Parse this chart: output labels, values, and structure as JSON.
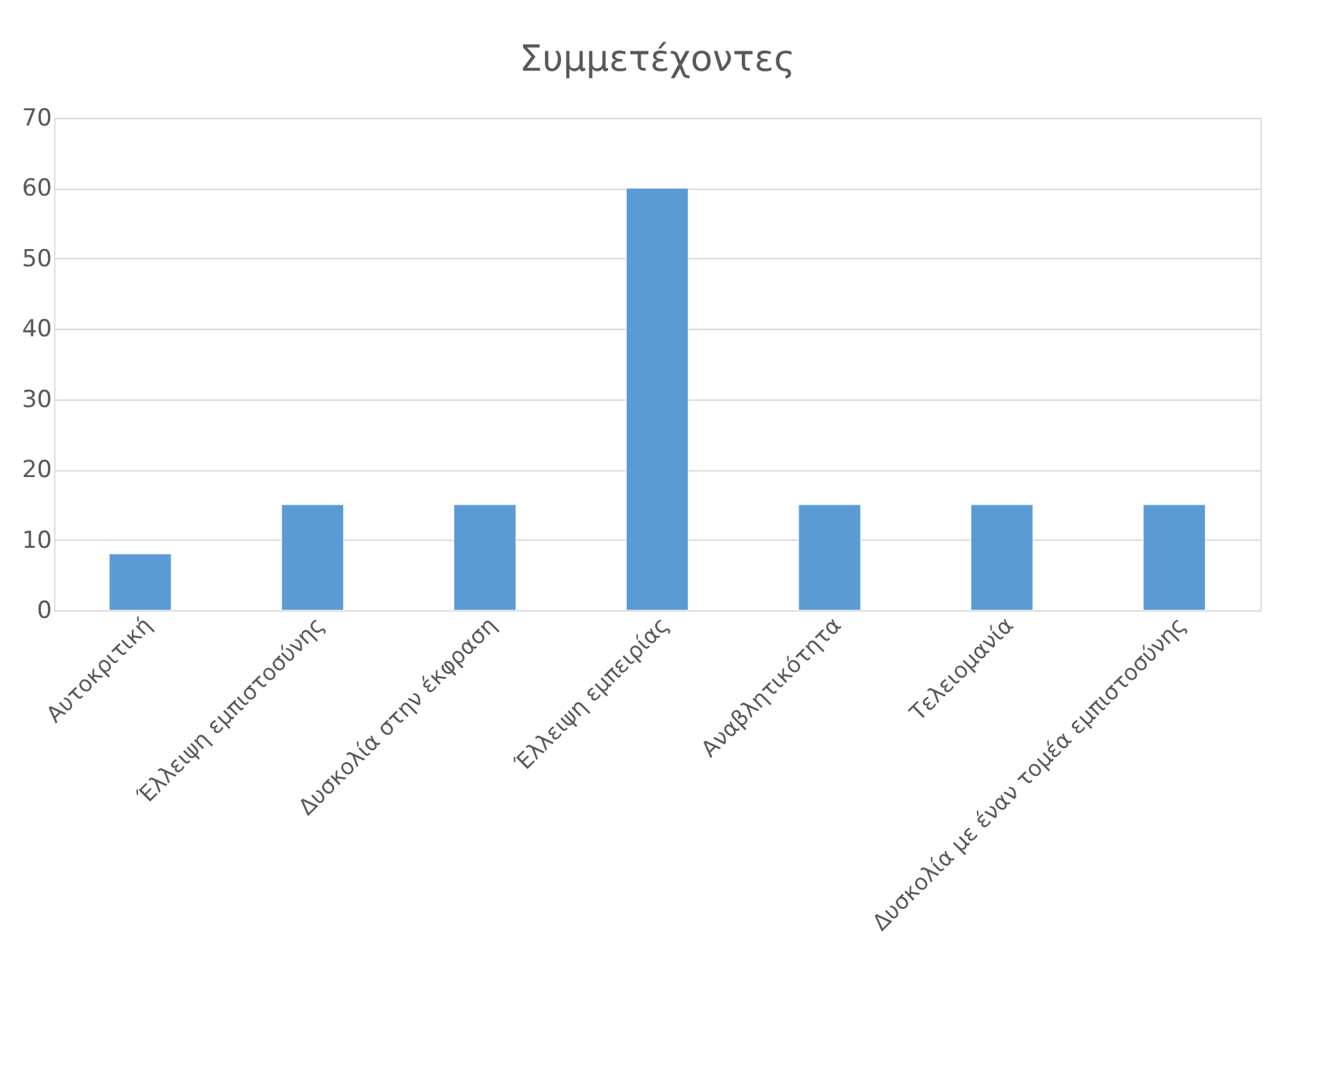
{
  "chart_data": {
    "type": "bar",
    "title": "Συμμετέχοντες",
    "categories": [
      "Αυτοκριτική",
      "Έλλειψη εμπιστοσύνης",
      "Δυσκολία στην έκφραση",
      "Έλλειψη εμπειρίας",
      "Αναβλητικότητα",
      "Τελειομανία",
      "Δυσκολία με έναν τομέα εμπιστοσύνης"
    ],
    "values": [
      8,
      15,
      15,
      60,
      15,
      15,
      15
    ],
    "color": "#5b9bd5",
    "ylim": [
      0,
      70
    ],
    "yticks": [
      0,
      10,
      20,
      30,
      40,
      50,
      60,
      70
    ],
    "grid": "y"
  }
}
